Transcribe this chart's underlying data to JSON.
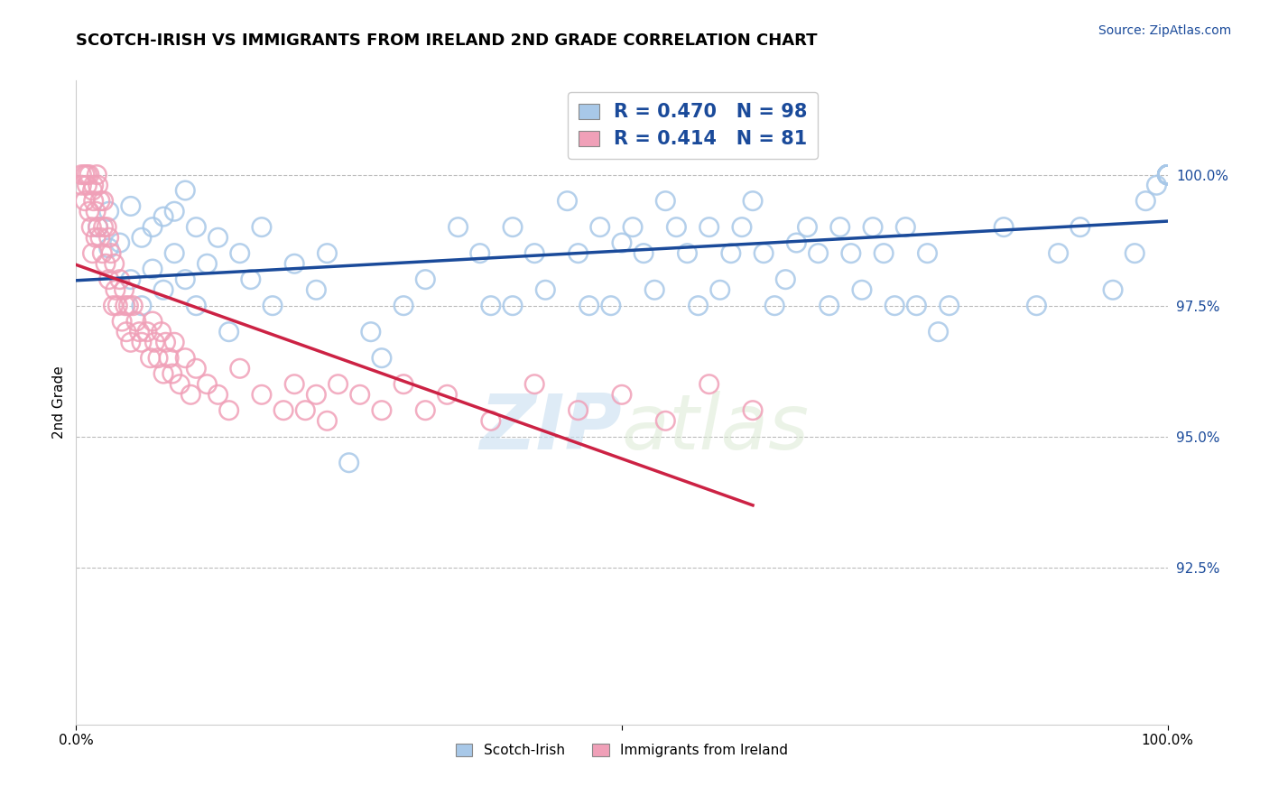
{
  "title": "SCOTCH-IRISH VS IMMIGRANTS FROM IRELAND 2ND GRADE CORRELATION CHART",
  "source_text": "Source: ZipAtlas.com",
  "ylabel": "2nd Grade",
  "watermark_zip": "ZIP",
  "watermark_atlas": "atlas",
  "blue_R": 0.47,
  "blue_N": 98,
  "pink_R": 0.414,
  "pink_N": 81,
  "blue_color": "#a8c8e8",
  "blue_line_color": "#1a4a9a",
  "pink_color": "#f0a0b8",
  "pink_line_color": "#cc2244",
  "legend_label_blue": "Scotch-Irish",
  "legend_label_pink": "Immigrants from Ireland",
  "ytick_labels": [
    "92.5%",
    "95.0%",
    "97.5%",
    "100.0%"
  ],
  "ytick_values": [
    0.925,
    0.95,
    0.975,
    1.0
  ],
  "xlim": [
    0.0,
    1.0
  ],
  "ylim": [
    0.895,
    1.018
  ],
  "blue_scatter_x": [
    0.02,
    0.03,
    0.03,
    0.04,
    0.05,
    0.05,
    0.06,
    0.06,
    0.07,
    0.07,
    0.08,
    0.08,
    0.09,
    0.09,
    0.1,
    0.1,
    0.11,
    0.11,
    0.12,
    0.13,
    0.14,
    0.15,
    0.16,
    0.17,
    0.18,
    0.2,
    0.22,
    0.23,
    0.25,
    0.27,
    0.28,
    0.3,
    0.32,
    0.35,
    0.37,
    0.38,
    0.4,
    0.4,
    0.42,
    0.43,
    0.45,
    0.46,
    0.47,
    0.48,
    0.49,
    0.5,
    0.51,
    0.52,
    0.53,
    0.54,
    0.55,
    0.56,
    0.57,
    0.58,
    0.59,
    0.6,
    0.61,
    0.62,
    0.63,
    0.64,
    0.65,
    0.66,
    0.67,
    0.68,
    0.69,
    0.7,
    0.71,
    0.72,
    0.73,
    0.74,
    0.75,
    0.76,
    0.77,
    0.78,
    0.79,
    0.8,
    0.85,
    0.88,
    0.9,
    0.92,
    0.95,
    0.97,
    0.98,
    0.99,
    1.0,
    1.0,
    1.0,
    1.0,
    1.0,
    1.0,
    1.0,
    1.0,
    1.0,
    1.0,
    1.0,
    1.0,
    1.0,
    1.0
  ],
  "blue_scatter_y": [
    0.99,
    0.993,
    0.986,
    0.987,
    0.98,
    0.994,
    0.988,
    0.975,
    0.982,
    0.99,
    0.978,
    0.992,
    0.985,
    0.993,
    0.98,
    0.997,
    0.975,
    0.99,
    0.983,
    0.988,
    0.97,
    0.985,
    0.98,
    0.99,
    0.975,
    0.983,
    0.978,
    0.985,
    0.945,
    0.97,
    0.965,
    0.975,
    0.98,
    0.99,
    0.985,
    0.975,
    0.975,
    0.99,
    0.985,
    0.978,
    0.995,
    0.985,
    0.975,
    0.99,
    0.975,
    0.987,
    0.99,
    0.985,
    0.978,
    0.995,
    0.99,
    0.985,
    0.975,
    0.99,
    0.978,
    0.985,
    0.99,
    0.995,
    0.985,
    0.975,
    0.98,
    0.987,
    0.99,
    0.985,
    0.975,
    0.99,
    0.985,
    0.978,
    0.99,
    0.985,
    0.975,
    0.99,
    0.975,
    0.985,
    0.97,
    0.975,
    0.99,
    0.975,
    0.985,
    0.99,
    0.978,
    0.985,
    0.995,
    0.998,
    1.0,
    1.0,
    1.0,
    1.0,
    1.0,
    1.0,
    1.0,
    1.0,
    1.0,
    1.0,
    1.0,
    1.0,
    1.0,
    1.0
  ],
  "pink_scatter_x": [
    0.005,
    0.005,
    0.008,
    0.008,
    0.01,
    0.01,
    0.012,
    0.012,
    0.014,
    0.015,
    0.015,
    0.016,
    0.016,
    0.018,
    0.018,
    0.019,
    0.02,
    0.02,
    0.022,
    0.022,
    0.024,
    0.025,
    0.025,
    0.027,
    0.028,
    0.03,
    0.03,
    0.032,
    0.034,
    0.035,
    0.036,
    0.038,
    0.04,
    0.042,
    0.044,
    0.045,
    0.046,
    0.048,
    0.05,
    0.052,
    0.055,
    0.058,
    0.06,
    0.065,
    0.068,
    0.07,
    0.072,
    0.075,
    0.078,
    0.08,
    0.082,
    0.085,
    0.088,
    0.09,
    0.095,
    0.1,
    0.105,
    0.11,
    0.12,
    0.13,
    0.14,
    0.15,
    0.17,
    0.19,
    0.2,
    0.21,
    0.22,
    0.23,
    0.24,
    0.26,
    0.28,
    0.3,
    0.32,
    0.34,
    0.38,
    0.42,
    0.46,
    0.5,
    0.54,
    0.58,
    0.62
  ],
  "pink_scatter_y": [
    0.998,
    1.0,
    0.995,
    1.0,
    0.998,
    1.0,
    0.993,
    1.0,
    0.99,
    0.997,
    0.985,
    0.995,
    0.998,
    0.988,
    0.993,
    1.0,
    0.99,
    0.998,
    0.988,
    0.995,
    0.985,
    0.99,
    0.995,
    0.983,
    0.99,
    0.98,
    0.988,
    0.985,
    0.975,
    0.983,
    0.978,
    0.975,
    0.98,
    0.972,
    0.978,
    0.975,
    0.97,
    0.975,
    0.968,
    0.975,
    0.972,
    0.97,
    0.968,
    0.97,
    0.965,
    0.972,
    0.968,
    0.965,
    0.97,
    0.962,
    0.968,
    0.965,
    0.962,
    0.968,
    0.96,
    0.965,
    0.958,
    0.963,
    0.96,
    0.958,
    0.955,
    0.963,
    0.958,
    0.955,
    0.96,
    0.955,
    0.958,
    0.953,
    0.96,
    0.958,
    0.955,
    0.96,
    0.955,
    0.958,
    0.953,
    0.96,
    0.955,
    0.958,
    0.953,
    0.96,
    0.955
  ]
}
